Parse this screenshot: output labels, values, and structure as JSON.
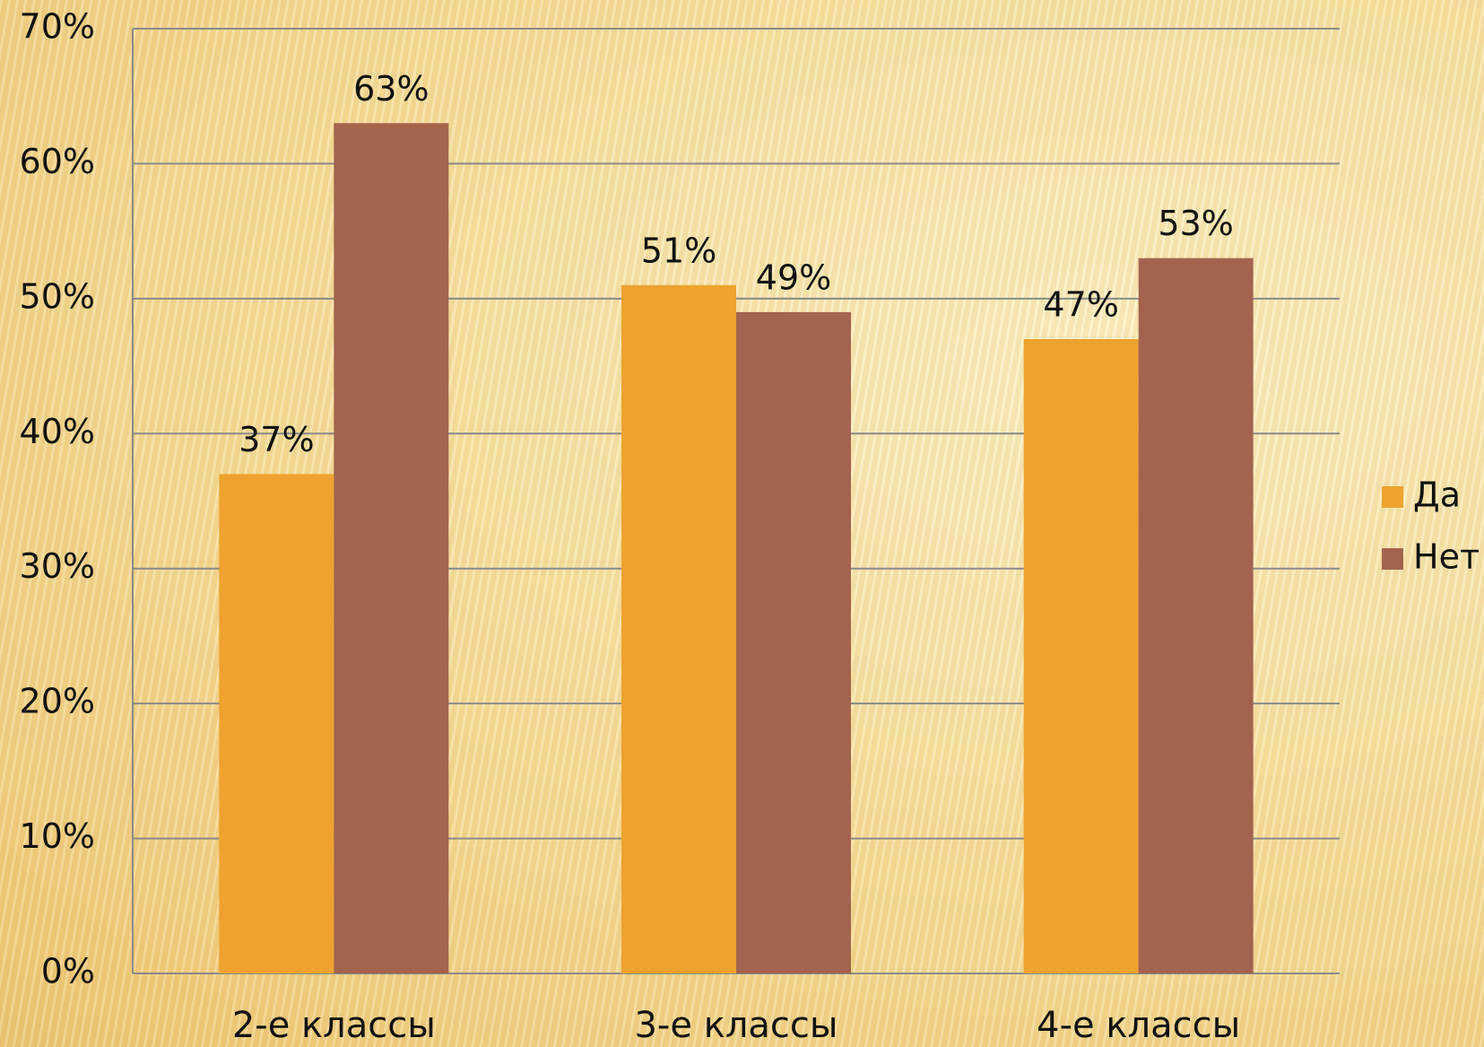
{
  "chart_data": {
    "type": "bar",
    "categories": [
      "2-е классы",
      "3-е классы",
      "4-е классы"
    ],
    "series": [
      {
        "name": "Да",
        "color": "#eea22f",
        "values": [
          37,
          51,
          47
        ],
        "value_labels": [
          "37%",
          "51%",
          "47%"
        ]
      },
      {
        "name": "Нет",
        "color": "#a3634e",
        "values": [
          63,
          49,
          53
        ],
        "value_labels": [
          "63%",
          "49%",
          "53%"
        ]
      }
    ],
    "ylim": [
      0,
      70
    ],
    "yticks": [
      {
        "value": 0,
        "label": "0%"
      },
      {
        "value": 10,
        "label": "10%"
      },
      {
        "value": 20,
        "label": "20%"
      },
      {
        "value": 30,
        "label": "30%"
      },
      {
        "value": 40,
        "label": "40%"
      },
      {
        "value": 50,
        "label": "50%"
      },
      {
        "value": 60,
        "label": "60%"
      },
      {
        "value": 70,
        "label": "70%"
      }
    ],
    "grid": true,
    "legend": "right"
  }
}
